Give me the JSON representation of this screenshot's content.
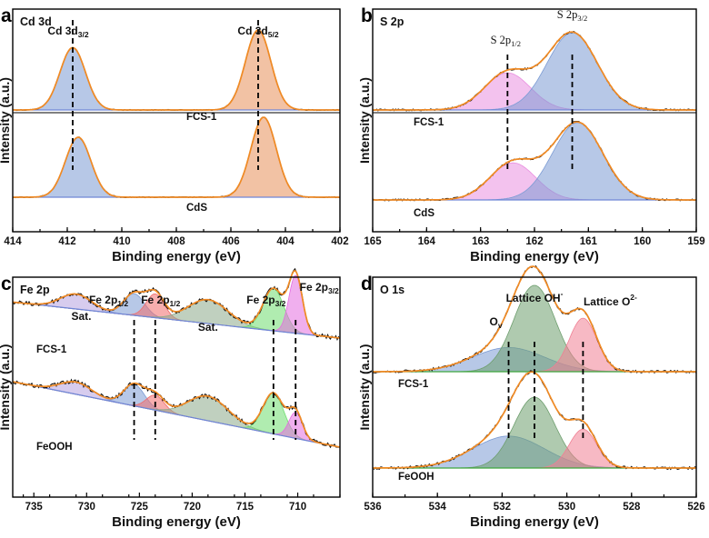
{
  "chart_data": [
    {
      "type": "line",
      "panel": "a",
      "title": "Cd 3d",
      "xlabel": "Binding energy (eV)",
      "ylabel": "Intensity (a.u.)",
      "xlim": [
        414,
        402
      ],
      "xticks": [
        "414",
        "412",
        "410",
        "408",
        "406",
        "404",
        "402"
      ],
      "peaks": [
        {
          "label": "Cd 3d",
          "sub": "3/2",
          "x": 411.8
        },
        {
          "label": "Cd 3d",
          "sub": "5/2",
          "x": 405.0
        }
      ],
      "series": [
        {
          "name": "FCS-1",
          "fits": [
            {
              "center": 411.8,
              "fwhm": 1.1,
              "height": 0.78,
              "color": "#7b9bd4"
            },
            {
              "center": 405.0,
              "fwhm": 1.1,
              "height": 1.0,
              "color": "#e8905a"
            }
          ]
        },
        {
          "name": "CdS",
          "fits": [
            {
              "center": 411.6,
              "fwhm": 1.1,
              "height": 0.75,
              "color": "#7b9bd4"
            },
            {
              "center": 404.8,
              "fwhm": 1.1,
              "height": 1.0,
              "color": "#e8905a"
            }
          ]
        }
      ]
    },
    {
      "type": "line",
      "panel": "b",
      "title": "S 2p",
      "xlabel": "Binding energy (eV)",
      "ylabel": "Intensity (a.u.)",
      "xlim": [
        165,
        159
      ],
      "xticks": [
        "165",
        "164",
        "163",
        "162",
        "161",
        "160",
        "159"
      ],
      "peaks": [
        {
          "label": "S 2p",
          "sub": "1/2",
          "x": 162.5
        },
        {
          "label": "S 2p",
          "sub": "3/2",
          "x": 161.3
        }
      ],
      "series": [
        {
          "name": "FCS-1",
          "fits": [
            {
              "center": 162.5,
              "fwhm": 1.0,
              "height": 0.48,
              "color": "#e98fe0"
            },
            {
              "center": 161.3,
              "fwhm": 1.1,
              "height": 1.0,
              "color": "#7b9bd4"
            }
          ]
        },
        {
          "name": "CdS",
          "fits": [
            {
              "center": 162.4,
              "fwhm": 1.0,
              "height": 0.48,
              "color": "#e98fe0"
            },
            {
              "center": 161.2,
              "fwhm": 1.1,
              "height": 1.0,
              "color": "#7b9bd4"
            }
          ]
        }
      ]
    },
    {
      "type": "line",
      "panel": "c",
      "title": "Fe 2p",
      "xlabel": "Binding energy (eV)",
      "ylabel": "Intensity (a.u.)",
      "xlim": [
        737,
        706
      ],
      "xticks": [
        "735",
        "730",
        "725",
        "720",
        "715",
        "710"
      ],
      "annotations": [
        {
          "text": "Sat.",
          "x": 730.5
        },
        {
          "text": "Sat.",
          "x": 718.5
        }
      ],
      "peaks": [
        {
          "label": "Fe 2p",
          "sub": "1/2",
          "x": 725.5
        },
        {
          "label": "Fe 2p",
          "sub": "1/2",
          "x": 723.5
        },
        {
          "label": "Fe 2p",
          "sub": "3/2",
          "x": 712.3
        },
        {
          "label": "Fe 2p",
          "sub": "3/2",
          "x": 710.2
        }
      ],
      "series": [
        {
          "name": "FCS-1",
          "fits": [
            {
              "center": 731,
              "fwhm": 3.5,
              "height": 0.22,
              "color": "#b7a3e0"
            },
            {
              "center": 725.5,
              "fwhm": 2.3,
              "height": 0.32,
              "color": "#7b9bd4"
            },
            {
              "center": 723.5,
              "fwhm": 2.0,
              "height": 0.35,
              "color": "#f06b6b"
            },
            {
              "center": 718.5,
              "fwhm": 4.5,
              "height": 0.35,
              "color": "#8ca98a"
            },
            {
              "center": 712.3,
              "fwhm": 2.3,
              "height": 0.62,
              "color": "#6fdc6f"
            },
            {
              "center": 710.2,
              "fwhm": 1.5,
              "height": 0.85,
              "color": "#e36ee0"
            }
          ]
        },
        {
          "name": "FeOOH",
          "fits": [
            {
              "center": 731,
              "fwhm": 3.5,
              "height": 0.18,
              "color": "#b7a3e0"
            },
            {
              "center": 725.5,
              "fwhm": 2.3,
              "height": 0.32,
              "color": "#7b9bd4"
            },
            {
              "center": 723.5,
              "fwhm": 2.0,
              "height": 0.22,
              "color": "#f06b6b"
            },
            {
              "center": 718.5,
              "fwhm": 4.5,
              "height": 0.36,
              "color": "#8ca98a"
            },
            {
              "center": 712.3,
              "fwhm": 2.3,
              "height": 0.6,
              "color": "#6fdc6f"
            },
            {
              "center": 710.2,
              "fwhm": 1.5,
              "height": 0.38,
              "color": "#e36ee0"
            }
          ]
        }
      ]
    },
    {
      "type": "line",
      "panel": "d",
      "title": "O 1s",
      "xlabel": "Binding energy (eV)",
      "ylabel": "Intensity (a.u.)",
      "xlim": [
        536,
        526
      ],
      "xticks": [
        "536",
        "534",
        "532",
        "530",
        "528",
        "526"
      ],
      "peaks": [
        {
          "label": "O",
          "sub": "v",
          "x": 531.8
        },
        {
          "label": "Lattice OH",
          "sup": "-",
          "x": 531.0
        },
        {
          "label": "Lattice O",
          "sup": "2-",
          "x": 529.5
        }
      ],
      "series": [
        {
          "name": "FCS-1",
          "fits": [
            {
              "center": 531.8,
              "fwhm": 2.6,
              "height": 0.28,
              "color": "#7b9bd4"
            },
            {
              "center": 531.0,
              "fwhm": 1.5,
              "height": 1.0,
              "color": "#6e9e6e"
            },
            {
              "center": 529.5,
              "fwhm": 1.0,
              "height": 0.62,
              "color": "#f07f93"
            }
          ]
        },
        {
          "name": "FeOOH",
          "fits": [
            {
              "center": 531.8,
              "fwhm": 2.6,
              "height": 0.37,
              "color": "#7b9bd4"
            },
            {
              "center": 531.0,
              "fwhm": 1.5,
              "height": 0.82,
              "color": "#6e9e6e"
            },
            {
              "center": 529.5,
              "fwhm": 1.0,
              "height": 0.45,
              "color": "#f07f93"
            }
          ]
        }
      ]
    }
  ]
}
